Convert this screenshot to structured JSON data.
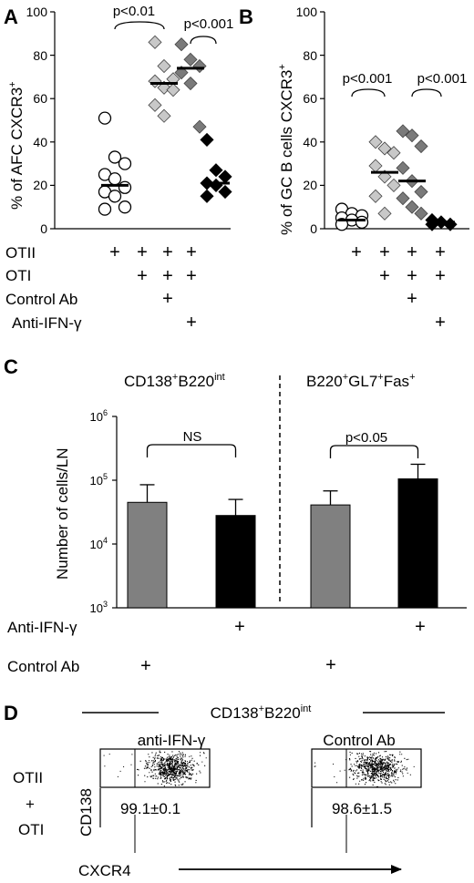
{
  "panel_labels": {
    "a": "A",
    "b": "B",
    "c": "C",
    "d": "D"
  },
  "panel_a": {
    "ylabel_pre": "% of  AFC CXCR3",
    "ylabel_sup": "+",
    "yticks": [
      "0",
      "20",
      "40",
      "60",
      "80",
      "100"
    ],
    "comparisons": [
      "p<0.01",
      "p<0.001"
    ]
  },
  "panel_b": {
    "ylabel_pre": "% of GC B cells CXCR3",
    "ylabel_sup": "+",
    "yticks": [
      "0",
      "20",
      "40",
      "60",
      "80",
      "100"
    ],
    "comparisons": [
      "p<0.001",
      "p<0.001"
    ]
  },
  "treatment_table": {
    "rows": [
      "OTII",
      "OTI",
      "Control Ab",
      "Anti-IFN-γ"
    ],
    "mark": "+"
  },
  "panel_c": {
    "ylabel": "Number of cells/LN",
    "yticks": [
      "10",
      "10",
      "10",
      "10"
    ],
    "ytick_exps": [
      "3",
      "4",
      "5",
      "6"
    ],
    "group1": {
      "pre": "CD138",
      "sup1": "+",
      "mid": "B220",
      "sup2": "int"
    },
    "group2": {
      "pre": "B220",
      "sup1": "+",
      "mid": "GL7",
      "sup2": "+",
      "mid2": "Fas",
      "sup3": "+"
    },
    "comparisons": [
      "NS",
      "p<0.05"
    ],
    "row_labels": [
      "Anti-IFN-γ",
      "Control Ab"
    ],
    "mark": "+"
  },
  "panel_d": {
    "title_pre": "CD138",
    "title_sup1": "+",
    "title_mid": "B220",
    "title_sup2": "int",
    "plot_titles": [
      "anti-IFN-γ",
      "Control Ab"
    ],
    "row_label": [
      "OTII",
      "+",
      "OTI"
    ],
    "ylabel": "CD138",
    "xlabel": "CXCR4",
    "stats": [
      "99.1±0.1",
      "98.6±1.5"
    ]
  },
  "chart_data": [
    {
      "type": "scatter",
      "title": "",
      "ylabel": "% of  AFC CXCR3+",
      "ylim": [
        0,
        100
      ],
      "groups": [
        "OTII",
        "OTII+OTI",
        "OTII+OTI+Control Ab",
        "OTII+OTI+Anti-IFN-γ"
      ],
      "series": [
        {
          "marker": "open-circle",
          "values": [
            51,
            33,
            30,
            25,
            23,
            19,
            17,
            15,
            10,
            9
          ],
          "mean": 20
        },
        {
          "marker": "light-diamond",
          "values": [
            86,
            75,
            69,
            68,
            65,
            64,
            57,
            52
          ],
          "mean": 67
        },
        {
          "marker": "dark-gray-diamond",
          "values": [
            85,
            78,
            75,
            72,
            67,
            47
          ],
          "mean": 74
        },
        {
          "marker": "black-diamond",
          "values": [
            41,
            27,
            24,
            21,
            20,
            17,
            15
          ],
          "mean": 21
        }
      ],
      "annotations": [
        {
          "text": "p<0.01",
          "between": [
            0,
            1
          ]
        },
        {
          "text": "p<0.001",
          "between": [
            2,
            3
          ]
        }
      ]
    },
    {
      "type": "scatter",
      "title": "",
      "ylabel": "% of GC B cells CXCR3+",
      "ylim": [
        0,
        100
      ],
      "groups": [
        "OTII",
        "OTII+OTI",
        "OTII+OTI+Control Ab",
        "OTII+OTI+Anti-IFN-γ"
      ],
      "series": [
        {
          "marker": "open-circle",
          "values": [
            9,
            7,
            6,
            5,
            4,
            3,
            2
          ],
          "mean": 4
        },
        {
          "marker": "light-diamond",
          "values": [
            40,
            37,
            35,
            29,
            24,
            20,
            15,
            7
          ],
          "mean": 26
        },
        {
          "marker": "dark-gray-diamond",
          "values": [
            45,
            43,
            38,
            28,
            22,
            17,
            14,
            10,
            7
          ],
          "mean": 22
        },
        {
          "marker": "black-diamond",
          "values": [
            4,
            3,
            2,
            2
          ],
          "mean": 3
        }
      ],
      "annotations": [
        {
          "text": "p<0.001",
          "between": [
            0,
            1
          ]
        },
        {
          "text": "p<0.001",
          "between": [
            2,
            3
          ]
        }
      ]
    },
    {
      "type": "bar",
      "ylabel": "Number of cells/LN",
      "yscale": "log",
      "ylim": [
        1000,
        1000000
      ],
      "categories": [
        "CD138+B220int Anti-IFN-γ",
        "CD138+B220int Control Ab",
        "B220+GL7+Fas+ Anti-IFN-γ",
        "B220+GL7+Fas+ Control Ab"
      ],
      "bars": [
        {
          "group": "CD138+B220int",
          "treatment": "Control Ab",
          "color": "#808080",
          "value": 45000,
          "error": 85000
        },
        {
          "group": "CD138+B220int",
          "treatment": "Anti-IFN-γ",
          "color": "#000000",
          "value": 28000,
          "error": 50000
        },
        {
          "group": "B220+GL7+Fas+",
          "treatment": "Control Ab",
          "color": "#808080",
          "value": 41000,
          "error": 68000
        },
        {
          "group": "B220+GL7+Fas+",
          "treatment": "Anti-IFN-γ",
          "color": "#000000",
          "value": 105000,
          "error": 178000
        }
      ],
      "annotations": [
        {
          "text": "NS",
          "group": "CD138+B220int"
        },
        {
          "text": "p<0.05",
          "group": "B220+GL7+Fas+"
        }
      ]
    },
    {
      "type": "scatter",
      "title": "CD138+B220int",
      "xlabel": "CXCR4",
      "ylabel": "CD138",
      "plots": [
        {
          "label": "anti-IFN-γ",
          "gate_percent": "99.1±0.1"
        },
        {
          "label": "Control Ab",
          "gate_percent": "98.6±1.5"
        }
      ]
    }
  ]
}
